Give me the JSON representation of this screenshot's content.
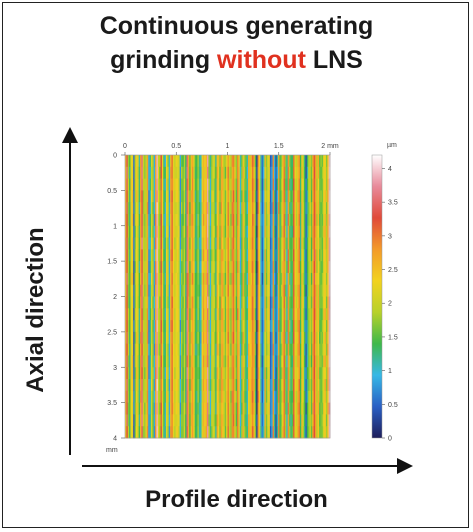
{
  "title": {
    "line1": "Continuous generating",
    "line2_prefix": "grinding ",
    "line2_highlight": "without",
    "line2_suffix": " LNS"
  },
  "colors": {
    "highlight": "#e0311f",
    "text": "#1a1a1a"
  },
  "xaxis_label": "Profile direction",
  "yaxis_label": "Axial direction",
  "map": {
    "x_ticks": [
      "0",
      "0.5",
      "1",
      "1.5",
      "2 mm"
    ],
    "y_ticks": [
      "0",
      "0.5",
      "1",
      "1.5",
      "2",
      "2.5",
      "3",
      "3.5",
      "4"
    ],
    "y_unit": "mm",
    "colorbar_unit": "µm",
    "colorbar_ticks": [
      "4",
      "3.5",
      "3",
      "2.5",
      "2",
      "1.5",
      "1",
      "0.5",
      "0"
    ],
    "x_range_mm": [
      0,
      2
    ],
    "y_range_mm": [
      0,
      4
    ],
    "z_range_um": [
      0,
      4.2
    ],
    "colormap": [
      "#1e1e5a",
      "#2a5fc4",
      "#37b8e6",
      "#3fb84a",
      "#b8d12a",
      "#f2d21f",
      "#f39a2a",
      "#e04a3a",
      "#e88a9a",
      "#ffffff"
    ]
  }
}
